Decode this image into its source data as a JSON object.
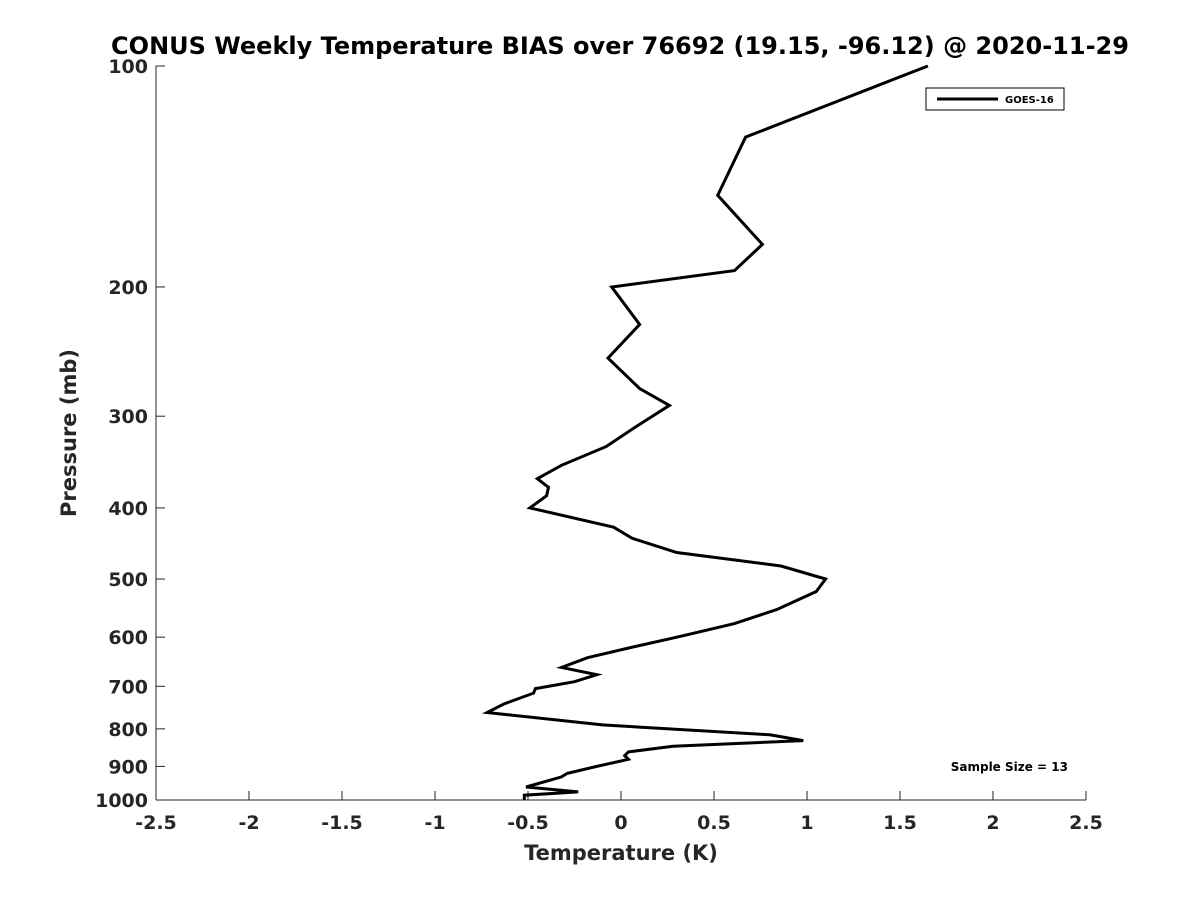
{
  "chart_data": {
    "type": "line",
    "title": "CONUS Weekly Temperature BIAS over 76692 (19.15, -96.12) @ 2020-11-29",
    "xlabel": "Temperature (K)",
    "ylabel": "Pressure (mb)",
    "xlim": [
      -2.5,
      2.5
    ],
    "ylim": [
      1000,
      100
    ],
    "yscale": "log",
    "y_reversed": true,
    "x_ticks": [
      "-2.5",
      "-2",
      "-1.5",
      "-1",
      "-0.5",
      "0",
      "0.5",
      "1",
      "1.5",
      "2",
      "2.5"
    ],
    "y_ticks": [
      "100",
      "200",
      "300",
      "400",
      "500",
      "600",
      "700",
      "800",
      "900",
      "1000"
    ],
    "grid": false,
    "legend_position": "top-right",
    "series": [
      {
        "name": "GOES-16",
        "color": "#000000",
        "points": [
          [
            1.65,
            100
          ],
          [
            0.67,
            125
          ],
          [
            0.52,
            150
          ],
          [
            0.76,
            175
          ],
          [
            0.61,
            190
          ],
          [
            -0.05,
            200
          ],
          [
            0.1,
            225
          ],
          [
            -0.07,
            250
          ],
          [
            0.1,
            275
          ],
          [
            0.26,
            290
          ],
          [
            0.08,
            310
          ],
          [
            -0.08,
            330
          ],
          [
            -0.32,
            350
          ],
          [
            -0.45,
            365
          ],
          [
            -0.39,
            375
          ],
          [
            -0.4,
            385
          ],
          [
            -0.49,
            400
          ],
          [
            -0.04,
            425
          ],
          [
            0.06,
            440
          ],
          [
            0.3,
            460
          ],
          [
            0.86,
            480
          ],
          [
            1.1,
            500
          ],
          [
            1.05,
            520
          ],
          [
            0.84,
            550
          ],
          [
            0.61,
            575
          ],
          [
            0.3,
            600
          ],
          [
            0.05,
            620
          ],
          [
            -0.18,
            640
          ],
          [
            -0.32,
            660
          ],
          [
            -0.13,
            675
          ],
          [
            -0.25,
            690
          ],
          [
            -0.46,
            705
          ],
          [
            -0.47,
            715
          ],
          [
            -0.63,
            740
          ],
          [
            -0.72,
            760
          ],
          [
            -0.1,
            790
          ],
          [
            0.8,
            815
          ],
          [
            0.98,
            830
          ],
          [
            0.28,
            845
          ],
          [
            0.04,
            860
          ],
          [
            0.02,
            870
          ],
          [
            0.04,
            880
          ],
          [
            -0.13,
            900
          ],
          [
            -0.29,
            920
          ],
          [
            -0.32,
            930
          ],
          [
            -0.51,
            960
          ],
          [
            -0.23,
            975
          ],
          [
            -0.52,
            985
          ],
          [
            -0.52,
            1000
          ]
        ]
      }
    ],
    "annotations": [
      "Sample Size = 13"
    ]
  }
}
